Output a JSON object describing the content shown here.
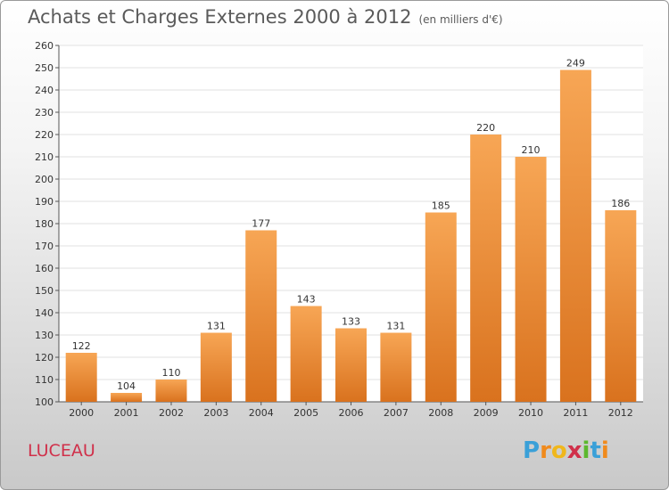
{
  "header": {
    "title": "Achats et Charges Externes 2000 à 2012",
    "subtitle": "(en milliers d'€)"
  },
  "footer": {
    "city": "LUCEAU",
    "logo": {
      "letters": [
        "P",
        "r",
        "o",
        "x",
        "i",
        "t",
        "i"
      ],
      "colors": [
        "#3aa0d8",
        "#f08a1c",
        "#f0b71c",
        "#d0304a",
        "#5cb82e",
        "#3aa0d8",
        "#f08a1c"
      ]
    }
  },
  "colors": {
    "bar_light": "#f7a655",
    "bar_dark": "#d9721e",
    "grid": "#e2e2e2"
  },
  "chart_data": {
    "type": "bar",
    "title": "Achats et Charges Externes 2000 à 2012",
    "subtitle": "(en milliers d'€)",
    "categories": [
      "2000",
      "2001",
      "2002",
      "2003",
      "2004",
      "2005",
      "2006",
      "2007",
      "2008",
      "2009",
      "2010",
      "2011",
      "2012"
    ],
    "values": [
      122,
      104,
      110,
      131,
      177,
      143,
      133,
      131,
      185,
      220,
      210,
      249,
      186
    ],
    "ylim": [
      100,
      260
    ],
    "yticks": [
      100,
      110,
      120,
      130,
      140,
      150,
      160,
      170,
      180,
      190,
      200,
      210,
      220,
      230,
      240,
      250,
      260
    ],
    "grid": true,
    "xlabel": "",
    "ylabel": ""
  }
}
